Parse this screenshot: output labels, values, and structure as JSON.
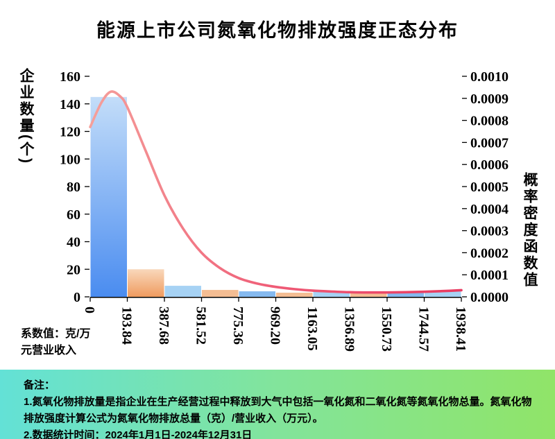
{
  "title": "能源上市公司氮氧化物排放强度正态分布",
  "chart_data": {
    "type": "bar",
    "title": "能源上市公司氮氧化物排放强度正态分布",
    "bin_edge_labels": [
      "0",
      "193.84",
      "387.68",
      "581.52",
      "775.36",
      "969.20",
      "1163.05",
      "1356.89",
      "1550.73",
      "1744.57",
      "1938.41"
    ],
    "bar_series": {
      "name": "企业数量",
      "values": [
        145,
        20,
        8,
        5,
        4,
        3,
        4,
        3,
        4,
        4
      ]
    },
    "line_series": {
      "name": "概率密度函数值",
      "points": [
        [
          0,
          0.00077
        ],
        [
          0.3,
          0.00088
        ],
        [
          0.55,
          0.00093
        ],
        [
          0.8,
          0.00091
        ],
        [
          1,
          0.00086
        ],
        [
          1.5,
          0.00066
        ],
        [
          2,
          0.00046
        ],
        [
          2.5,
          0.00031
        ],
        [
          3,
          0.0002
        ],
        [
          3.5,
          0.00013
        ],
        [
          4,
          8.5e-05
        ],
        [
          4.5,
          6e-05
        ],
        [
          5,
          4.5e-05
        ],
        [
          5.5,
          3.5e-05
        ],
        [
          6,
          2.8e-05
        ],
        [
          6.5,
          2.4e-05
        ],
        [
          7,
          2.1e-05
        ],
        [
          7.5,
          2e-05
        ],
        [
          8,
          2e-05
        ],
        [
          8.5,
          2.1e-05
        ],
        [
          9,
          2.3e-05
        ],
        [
          9.5,
          2.6e-05
        ],
        [
          10,
          3e-05
        ]
      ]
    },
    "left_axis": {
      "label": "企业数量(个)",
      "min": 0,
      "max": 160,
      "step": 20
    },
    "right_axis": {
      "label": "概率密度函数值",
      "min": 0,
      "max": 0.001,
      "step": 0.0001,
      "decimals": 4
    },
    "bar_colors": [
      [
        "#c3ddf9",
        "#4a8cf0"
      ],
      [
        "#f9d8bb",
        "#ef9b5f"
      ],
      "#a6d2f4",
      "#f4bd93",
      "#85b9ef",
      "#f4bd93",
      "#a6d2f4",
      "#f4bd93",
      "#85b9ef",
      "#a6d2f4"
    ],
    "line_gradient": [
      "#f5a09b",
      "#ef5b76",
      "#e93a60"
    ],
    "unit_note_lines": [
      "系数值：克/万",
      "元营业收入"
    ],
    "grid": "off",
    "legend": "none"
  },
  "notes": {
    "header": "备注：",
    "items": [
      "1.氮氧化物排放量是指企业在生产经营过程中释放到大气中包括一氧化氮和二氧化氮等氮氧化物总量。氮氧化物排放强度计算公式为氮氧化物排放总量（克）/营业收入（万元）。",
      "2.数据统计时间：2024年1月1日-2024年12月31日"
    ],
    "background_gradient": [
      "#63e1d6",
      "#82e49b",
      "#90e468"
    ]
  }
}
